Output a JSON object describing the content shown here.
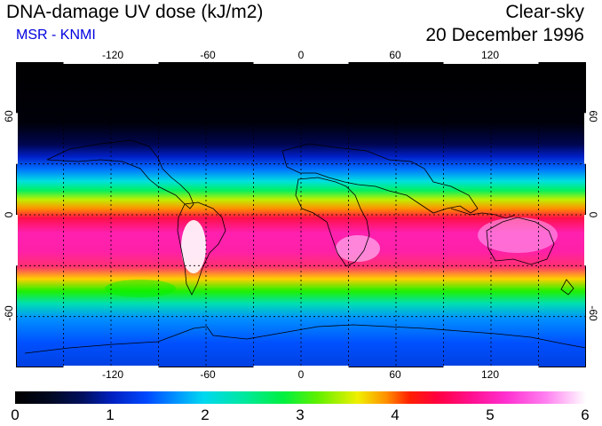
{
  "header": {
    "title": "DNA-damage UV dose (kJ/m2)",
    "organization": "MSR - KNMI",
    "sky_condition": "Clear-sky",
    "date": "20 December 1996"
  },
  "map": {
    "longitude_labels": [
      "-120",
      "-60",
      "0",
      "60",
      "120"
    ],
    "latitude_labels": [
      "60",
      "0",
      "-60"
    ],
    "longitude_range": [
      -180,
      180
    ],
    "latitude_range": [
      -90,
      90
    ],
    "gridline_longitudes": [
      -150,
      -120,
      -90,
      -60,
      -30,
      0,
      30,
      60,
      90,
      120,
      150
    ],
    "gridline_latitudes": [
      -60,
      -30,
      0,
      30,
      60
    ],
    "projection": "equirectangular"
  },
  "colorbar": {
    "ticks": [
      "0",
      "1",
      "2",
      "3",
      "4",
      "5",
      "6"
    ],
    "range": [
      0,
      6
    ],
    "colors": [
      "#000000",
      "#0020c0",
      "#00d8f0",
      "#00f040",
      "#f0f000",
      "#ff0040",
      "#ff30d0",
      "#ffffff"
    ]
  }
}
